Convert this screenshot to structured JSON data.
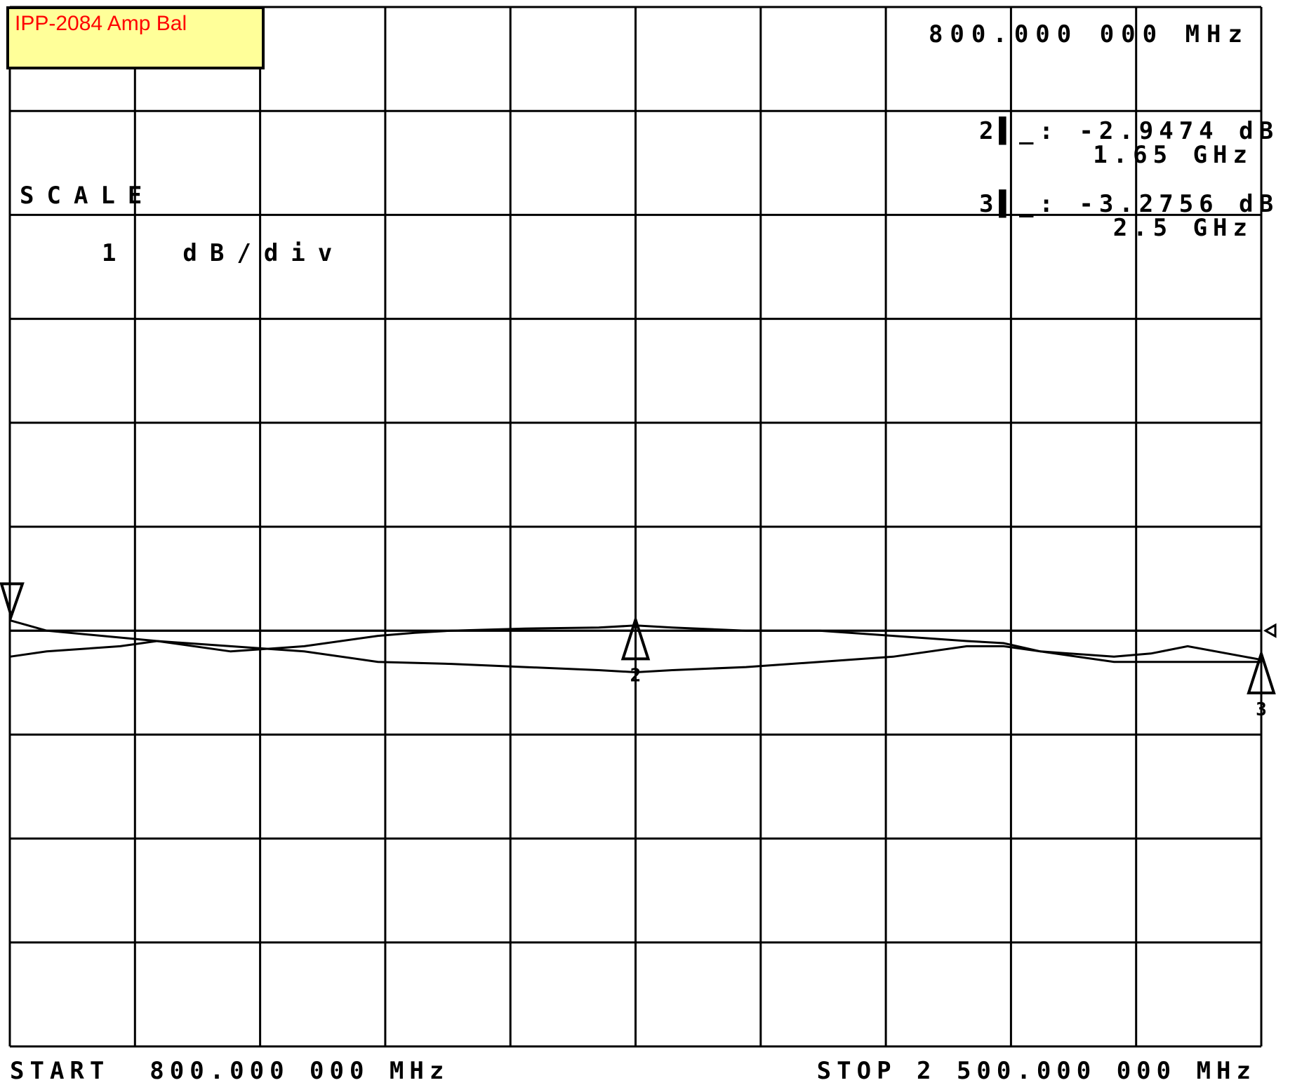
{
  "title_label": "IPP-2084 Amp Bal",
  "header_freq": "800.000 000 MHz",
  "scale_label": "SCALE",
  "scale_value": "1  dB/div",
  "markers": [
    {
      "id": "2",
      "readout": "2▌_: -2.9474 dB",
      "freq": "1.65 GHz"
    },
    {
      "id": "3",
      "readout": "3▌_: -3.2756 dB",
      "freq": "2.5 GHz"
    }
  ],
  "start_label": "START  800.000 000 MHz",
  "stop_label": "STOP 2 500.000 000 MHz",
  "chart_data": {
    "type": "line",
    "x_unit": "MHz",
    "y_unit": "dB",
    "xlim": [
      800,
      2500
    ],
    "ylim": [
      -7,
      3
    ],
    "grid": true,
    "reference_level_dB": -3.0,
    "series": [
      {
        "x": [
          800,
          850,
          1000,
          1100,
          1200,
          1300,
          1350,
          1400,
          1500,
          1600,
          1650,
          1700,
          1800,
          1900,
          2000,
          2100,
          2150,
          2200,
          2300,
          2350,
          2400,
          2500
        ],
        "y": [
          -2.9,
          -3.0,
          -3.1,
          -3.2,
          -3.15,
          -3.05,
          -3.02,
          -3.0,
          -2.98,
          -2.97,
          -2.95,
          -2.97,
          -3.0,
          -3.0,
          -3.05,
          -3.1,
          -3.12,
          -3.2,
          -3.25,
          -3.22,
          -3.15,
          -3.28
        ]
      },
      {
        "x": [
          800,
          850,
          950,
          1000,
          1100,
          1200,
          1300,
          1400,
          1500,
          1600,
          1650,
          1700,
          1800,
          1900,
          2000,
          2100,
          2150,
          2200,
          2300,
          2400,
          2500
        ],
        "y": [
          -3.25,
          -3.2,
          -3.15,
          -3.1,
          -3.15,
          -3.2,
          -3.3,
          -3.32,
          -3.35,
          -3.38,
          -3.4,
          -3.38,
          -3.35,
          -3.3,
          -3.25,
          -3.15,
          -3.15,
          -3.2,
          -3.3,
          -3.3,
          -3.3
        ]
      }
    ],
    "markers": [
      {
        "label": "2",
        "x": 1650,
        "y": -2.9474
      },
      {
        "label": "3",
        "x": 2500,
        "y": -3.2756
      }
    ]
  }
}
